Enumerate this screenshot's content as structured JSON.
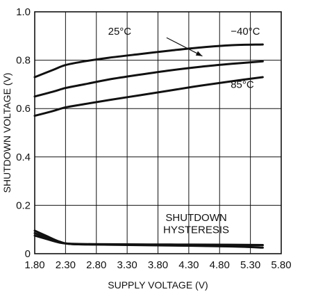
{
  "chart_data": {
    "type": "line",
    "title": "",
    "xlabel": "SUPPLY VOLTAGE (V)",
    "ylabel": "SHUTDOWN VOLTAGE (V)",
    "xlim": [
      1.8,
      5.8
    ],
    "ylim": [
      0,
      1.0
    ],
    "x_ticks": [
      "1.80",
      "2.30",
      "2.80",
      "3.30",
      "3.80",
      "4.30",
      "4.80",
      "5.30",
      "5.80"
    ],
    "y_ticks": [
      "0",
      "0.2",
      "0.4",
      "0.6",
      "0.8",
      "1.0"
    ],
    "grid": true,
    "line_color": "#111111",
    "series": [
      {
        "name": "−40°C",
        "x": [
          1.8,
          2.1,
          2.3,
          2.6,
          3.0,
          3.5,
          4.0,
          4.5,
          5.0,
          5.5
        ],
        "y": [
          0.73,
          0.76,
          0.78,
          0.795,
          0.81,
          0.825,
          0.84,
          0.853,
          0.862,
          0.865
        ]
      },
      {
        "name": "25°C",
        "x": [
          1.8,
          2.1,
          2.3,
          2.6,
          3.0,
          3.5,
          4.0,
          4.5,
          5.0,
          5.5
        ],
        "y": [
          0.65,
          0.67,
          0.685,
          0.7,
          0.72,
          0.74,
          0.758,
          0.773,
          0.785,
          0.795
        ]
      },
      {
        "name": "85°C",
        "x": [
          1.8,
          2.1,
          2.3,
          2.6,
          3.0,
          3.5,
          4.0,
          4.5,
          5.0,
          5.5
        ],
        "y": [
          0.57,
          0.59,
          0.605,
          0.618,
          0.635,
          0.655,
          0.675,
          0.695,
          0.713,
          0.73
        ]
      },
      {
        "name": "SHUTDOWN HYSTERESIS",
        "x": [
          1.8,
          2.0,
          2.2,
          2.4,
          3.0,
          4.0,
          5.0,
          5.5
        ],
        "y": [
          0.095,
          0.072,
          0.05,
          0.04,
          0.037,
          0.034,
          0.03,
          0.025
        ]
      },
      {
        "name": "SHUTDOWN HYSTERESIS",
        "x": [
          1.8,
          2.0,
          2.2,
          2.4,
          3.0,
          4.0,
          5.0,
          5.5
        ],
        "y": [
          0.085,
          0.065,
          0.048,
          0.04,
          0.038,
          0.037,
          0.035,
          0.035
        ]
      },
      {
        "name": "SHUTDOWN HYSTERESIS",
        "x": [
          1.8,
          2.0,
          2.2,
          2.4,
          3.0,
          4.0,
          5.0,
          5.5
        ],
        "y": [
          0.075,
          0.06,
          0.046,
          0.041,
          0.039,
          0.038,
          0.037,
          0.036
        ]
      }
    ],
    "annotations": [
      {
        "text": "25°C"
      },
      {
        "text": "−40°C"
      },
      {
        "text": "85°C"
      },
      {
        "text": "SHUTDOWN"
      },
      {
        "text": "HYSTERESIS"
      }
    ]
  }
}
